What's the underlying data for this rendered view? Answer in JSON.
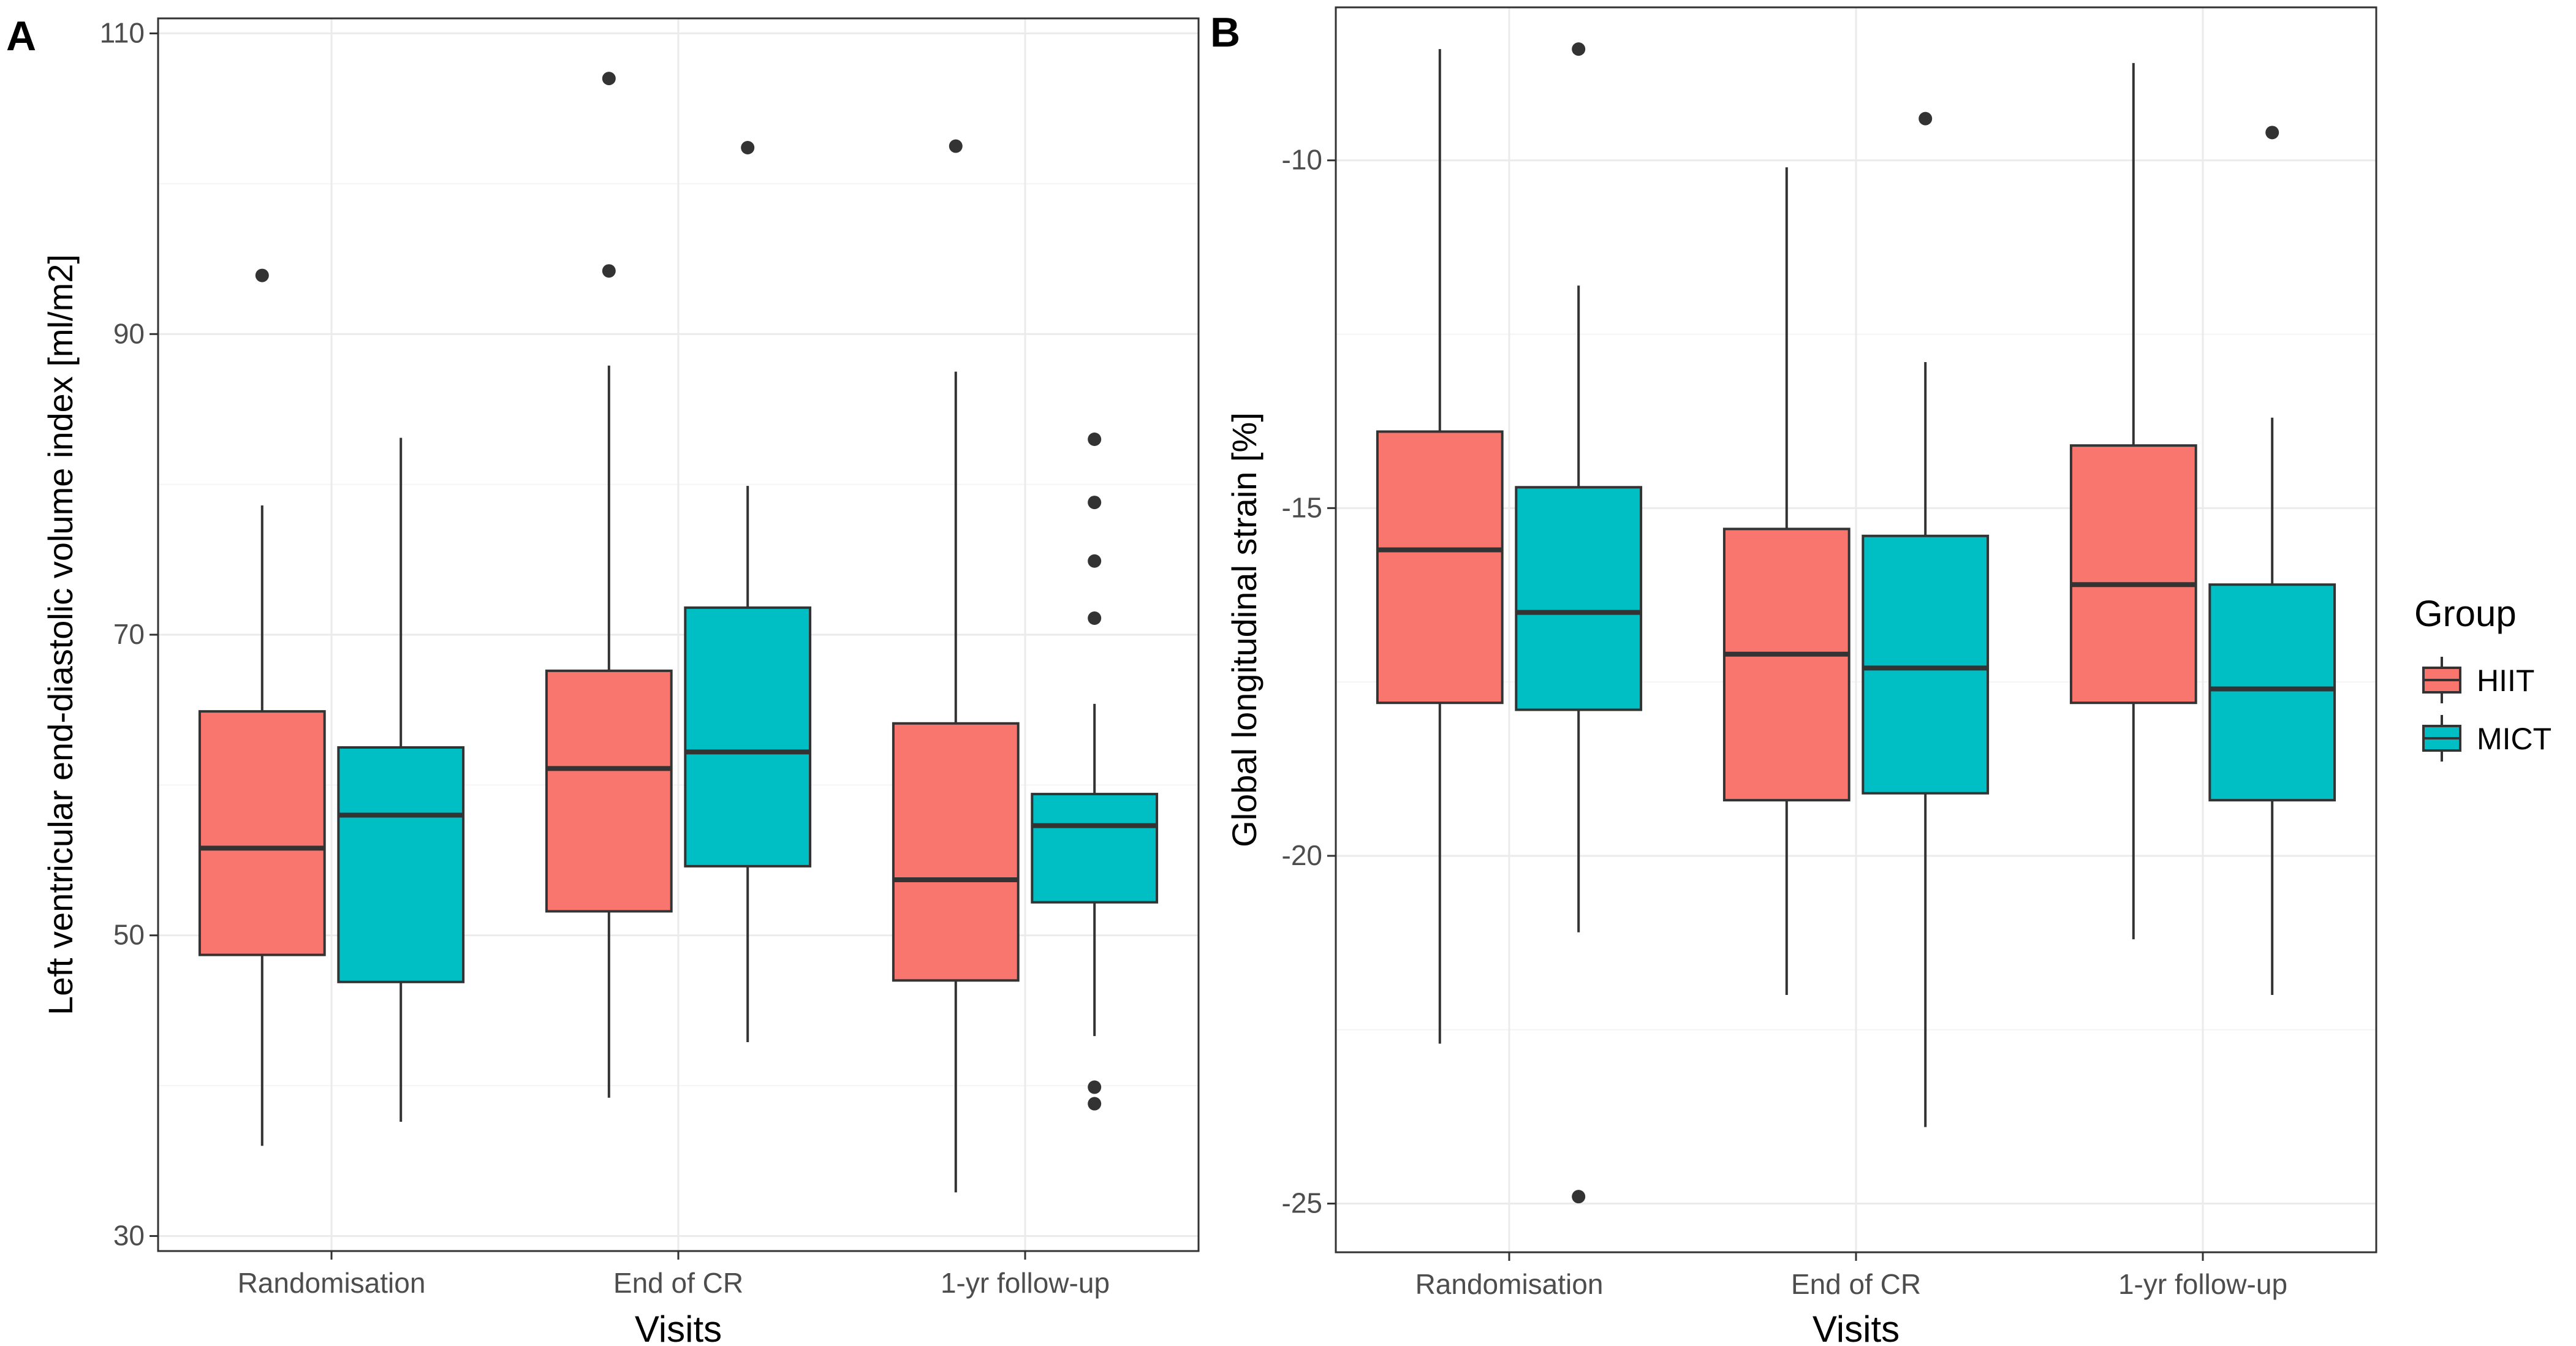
{
  "chart_data": [
    {
      "type": "boxplot",
      "panel_label": "A",
      "xlabel": "Visits",
      "ylabel": "Left ventricular end-diastolic volume index [ml/m2]",
      "categories": [
        "Randomisation",
        "End of CR",
        "1-yr follow-up"
      ],
      "ylim": [
        29,
        111
      ],
      "yticks": [
        30,
        50,
        70,
        90,
        110
      ],
      "ytick_labels": [
        "30",
        "50",
        "70",
        "90",
        "110"
      ],
      "grid": true,
      "series": [
        {
          "name": "HIIT",
          "boxes": [
            {
              "whisker_low": 36,
              "q1": 48.7,
              "median": 55.8,
              "q3": 64.9,
              "whisker_high": 78.6,
              "outliers": [
                93.9
              ]
            },
            {
              "whisker_low": 39.2,
              "q1": 51.6,
              "median": 61.1,
              "q3": 67.6,
              "whisker_high": 87.9,
              "outliers": [
                94.2,
                107
              ]
            },
            {
              "whisker_low": 32.9,
              "q1": 47,
              "median": 53.7,
              "q3": 64.1,
              "whisker_high": 87.5,
              "outliers": [
                102.5
              ]
            }
          ]
        },
        {
          "name": "MICT",
          "boxes": [
            {
              "whisker_low": 37.6,
              "q1": 46.9,
              "median": 58,
              "q3": 62.5,
              "whisker_high": 83.1,
              "outliers": []
            },
            {
              "whisker_low": 42.9,
              "q1": 54.6,
              "median": 62.2,
              "q3": 71.8,
              "whisker_high": 79.9,
              "outliers": [
                102.4
              ]
            },
            {
              "whisker_low": 43.3,
              "q1": 52.2,
              "median": 57.3,
              "q3": 59.4,
              "whisker_high": 65.4,
              "outliers": [
                38.8,
                39.9,
                71.1,
                74.9,
                78.8,
                83
              ]
            }
          ]
        }
      ]
    },
    {
      "type": "boxplot",
      "panel_label": "B",
      "xlabel": "Visits",
      "ylabel": "Global longitudinal strain [%]",
      "categories": [
        "Randomisation",
        "End of CR",
        "1-yr follow-up"
      ],
      "ylim": [
        -25.7,
        -7.8
      ],
      "yticks": [
        -25,
        -20,
        -15,
        -10
      ],
      "ytick_labels": [
        "-25",
        "-20",
        "-15",
        "-10"
      ],
      "grid": true,
      "series": [
        {
          "name": "HIIT",
          "boxes": [
            {
              "whisker_low": -22.7,
              "q1": -17.8,
              "median": -15.6,
              "q3": -13.9,
              "whisker_high": -8.4,
              "outliers": []
            },
            {
              "whisker_low": -22,
              "q1": -19.2,
              "median": -17.1,
              "q3": -15.3,
              "whisker_high": -10.1,
              "outliers": []
            },
            {
              "whisker_low": -21.2,
              "q1": -17.8,
              "median": -16.1,
              "q3": -14.1,
              "whisker_high": -8.6,
              "outliers": []
            }
          ]
        },
        {
          "name": "MICT",
          "boxes": [
            {
              "whisker_low": -21.1,
              "q1": -17.9,
              "median": -16.5,
              "q3": -14.7,
              "whisker_high": -11.8,
              "outliers": [
                -8.4,
                -24.9
              ]
            },
            {
              "whisker_low": -23.9,
              "q1": -19.1,
              "median": -17.3,
              "q3": -15.4,
              "whisker_high": -12.9,
              "outliers": [
                -9.4
              ]
            },
            {
              "whisker_low": -22,
              "q1": -19.2,
              "median": -17.6,
              "q3": -16.1,
              "whisker_high": -13.7,
              "outliers": [
                -9.6
              ]
            }
          ]
        }
      ]
    }
  ],
  "legend": {
    "title": "Group",
    "items": [
      {
        "label": "HIIT",
        "color": "#F8766D"
      },
      {
        "label": "MICT",
        "color": "#00BFC4"
      }
    ]
  },
  "colors": {
    "HIIT": "#F8766D",
    "MICT": "#00BFC4",
    "line": "#333333",
    "grid_major": "#EBEBEB",
    "grid_minor": "#F4F4F4",
    "panel_border": "#333333"
  }
}
